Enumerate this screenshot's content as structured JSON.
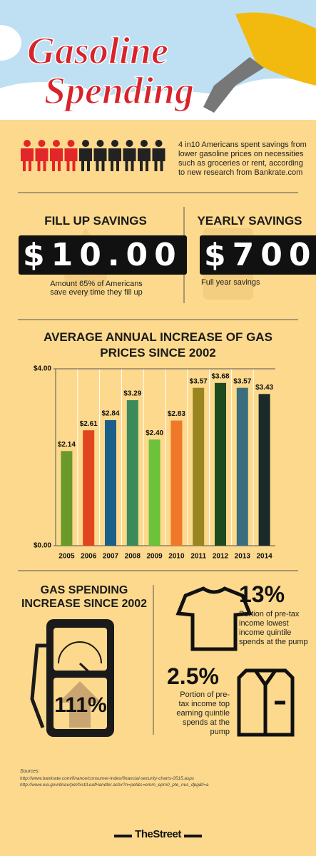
{
  "header": {
    "title_line1": "Gasoline",
    "title_line2": "Spending"
  },
  "intro": {
    "text": "4 in10 Americans spent savings from lower gasoline prices on necessities such as groceries or rent, according to new research from Bankrate.com"
  },
  "fill_up": {
    "heading": "FILL UP SAVINGS",
    "amount": "$10.00",
    "note": "Amount 65% of Americans save every time they fill up"
  },
  "yearly": {
    "heading": "YEARLY SAVINGS",
    "amount": "$700",
    "note": "Full year savings"
  },
  "chart_data": {
    "type": "bar",
    "title": "AVERAGE ANNUAL INCREASE OF GAS PRICES SINCE 2002",
    "categories": [
      "2005",
      "2006",
      "2007",
      "2008",
      "2009",
      "2010",
      "2011",
      "2012",
      "2013",
      "2014"
    ],
    "values": [
      2.14,
      2.61,
      2.84,
      3.29,
      2.4,
      2.83,
      3.57,
      3.68,
      3.57,
      3.43
    ],
    "value_labels": [
      "$2.14",
      "$2.61",
      "$2.84",
      "$3.29",
      "$2.40",
      "$2.83",
      "$3.57",
      "$3.68",
      "$3.57",
      "$3.43"
    ],
    "colors": [
      "#6a9a2a",
      "#e0461e",
      "#1a5f8a",
      "#3a8a5a",
      "#6cc23a",
      "#f0782a",
      "#9a8420",
      "#1e4a20",
      "#3a6e7e",
      "#1a2a28"
    ],
    "ylim": [
      0,
      4
    ],
    "yticks": [
      {
        "value": 0,
        "label": "$0.00"
      },
      {
        "value": 4,
        "label": "$4.00"
      }
    ]
  },
  "increase": {
    "heading": "GAS SPENDING INCREASE SINCE 2002",
    "value": "111%"
  },
  "stats": [
    {
      "value": "13%",
      "text": "Portion of pre-tax income lowest income quintile spends at the pump"
    },
    {
      "value": "2.5%",
      "text": "Portion of pre-tax income top earning quintile spends at the pump"
    }
  ],
  "sources": {
    "label": "Sources:",
    "links": [
      "http://www.bankrate.com/finance/consumer-index/financial-security-charts-0515.aspx",
      "http://www.eia.gov/dnav/pet/hist/LeafHandler.ashx?n=pet&s=emm_epm0_pte_nus_dpg&f=a"
    ]
  },
  "footer": {
    "logo": "TheStreet"
  }
}
